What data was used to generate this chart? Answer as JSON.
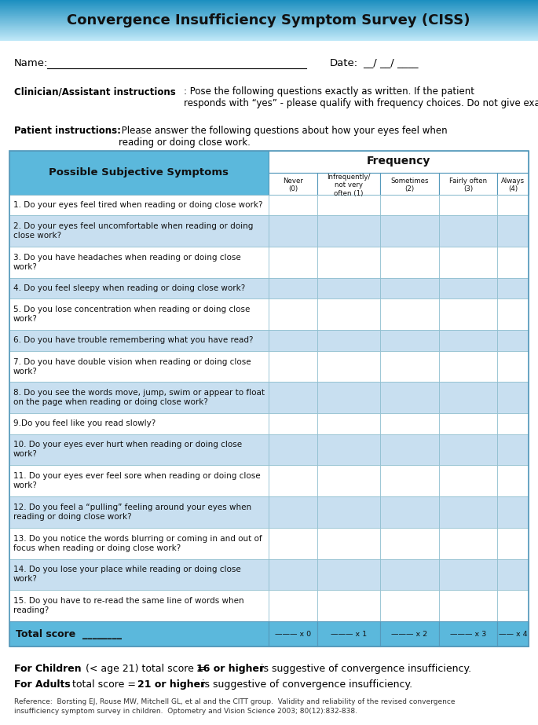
{
  "title": "Convergence Insufficiency Symptom Survey (CISS)",
  "col_headers": [
    "Never\n(0)",
    "Infrequently/\nnot very\noften (1)",
    "Sometimes\n(2)",
    "Fairly often\n(3)",
    "Always\n(4)"
  ],
  "questions": [
    "1. Do your eyes feel tired when reading or doing close work?",
    "2. Do your eyes feel uncomfortable when reading or doing\nclose work?",
    "3. Do you have headaches when reading or doing close\nwork?",
    "4. Do you feel sleepy when reading or doing close work?",
    "5. Do you lose concentration when reading or doing close\nwork?",
    "6. Do you have trouble remembering what you have read?",
    "7. Do you have double vision when reading or doing close\nwork?",
    "8. Do you see the words move, jump, swim or appear to float\non the page when reading or doing close work?",
    "9.Do you feel like you read slowly?",
    "10. Do your eyes ever hurt when reading or doing close\nwork?",
    "11. Do your eyes ever feel sore when reading or doing close\nwork?",
    "12. Do you feel a “pulling” feeling around your eyes when\nreading or doing close work?",
    "13. Do you notice the words blurring or coming in and out of\nfocus when reading or doing close work?",
    "14. Do you lose your place while reading or doing close\nwork?",
    "15. Do you have to re-read the same line of words when\nreading?"
  ],
  "row_bg": [
    "#FFFFFF",
    "#C8DFF0",
    "#FFFFFF",
    "#C8DFF0",
    "#FFFFFF",
    "#C8DFF0",
    "#FFFFFF",
    "#C8DFF0",
    "#FFFFFF",
    "#C8DFF0",
    "#FFFFFF",
    "#C8DFF0",
    "#FFFFFF",
    "#C8DFF0",
    "#FFFFFF"
  ],
  "multipliers": [
    "——— x 0",
    "——— x 1",
    "——— x 2",
    "——— x 3",
    "—— x 4"
  ],
  "header_grad_top": "#1A8EBF",
  "header_grad_bot": "#A8DCF0",
  "col1_header_bg": "#5BB8DC",
  "freq_header_bg": "#FFFFFF",
  "total_row_bg": "#5BB8DC",
  "border_color": "#5599BB",
  "grid_color": "#88BBCC"
}
